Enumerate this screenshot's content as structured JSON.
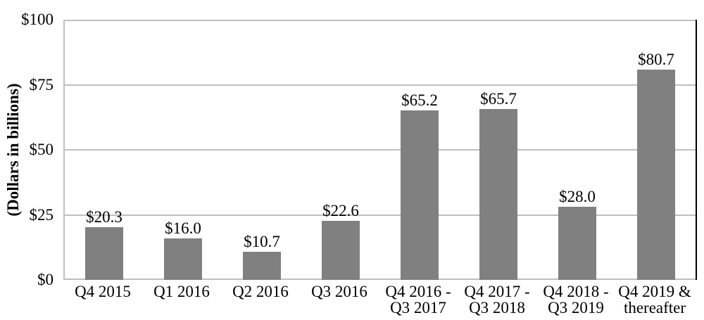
{
  "chart_data": {
    "type": "bar",
    "title": "",
    "xlabel": "",
    "ylabel": "(Dollars in billions)",
    "ylim": [
      0,
      100
    ],
    "grid": true,
    "legend": false,
    "yticks": [
      "$0",
      "$25",
      "$50",
      "$75",
      "$100"
    ],
    "categories": [
      "Q4 2015",
      "Q1 2016",
      "Q2 2016",
      "Q3 2016",
      "Q4 2016 -\nQ3 2017",
      "Q4 2017 -\nQ3 2018",
      "Q4 2018 -\nQ3 2019",
      "Q4 2019 &\nthereafter"
    ],
    "values": [
      20.3,
      16.0,
      10.7,
      22.6,
      65.2,
      65.7,
      28.0,
      80.7
    ],
    "data_labels": [
      "$20.3",
      "$16.0",
      "$10.7",
      "$22.6",
      "$65.2",
      "$65.7",
      "$28.0",
      "$80.7"
    ],
    "colors": {
      "bar": "#808080",
      "gridline": "#bfbfbf",
      "plot_right_border": "#000000",
      "text": "#000000",
      "background": "#ffffff"
    }
  }
}
